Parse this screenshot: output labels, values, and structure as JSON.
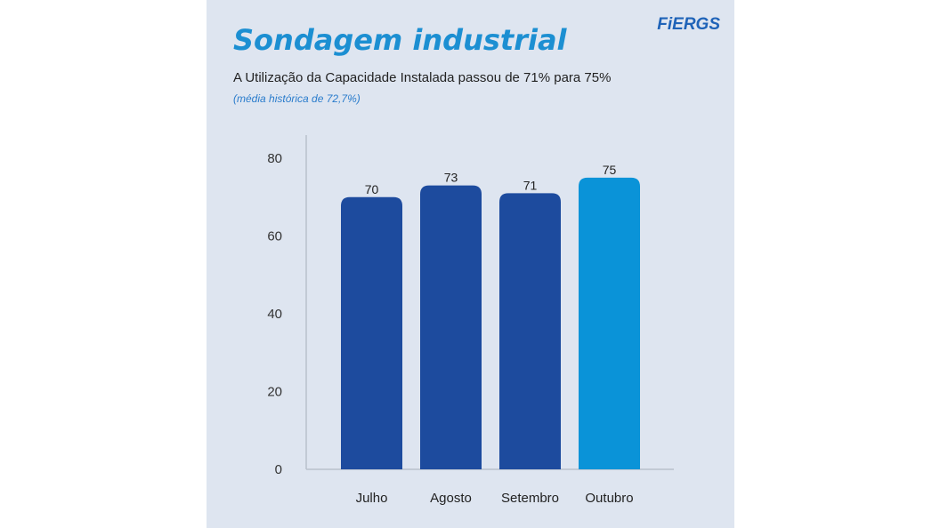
{
  "header": {
    "title": "Sondagem industrial",
    "logo": "FiERGS",
    "subtitle": "A Utilização da Capacidade Instalada passou de 71% para 75%",
    "note": "(média histórica de 72,7%)"
  },
  "chart_data": {
    "type": "bar",
    "title": "Sondagem industrial",
    "categories": [
      "Julho",
      "Agosto",
      "Setembro",
      "Outubro"
    ],
    "values": [
      70,
      73,
      71,
      75
    ],
    "yticks": [
      "0",
      "20",
      "40",
      "60",
      "80"
    ],
    "ylim": [
      0,
      80
    ],
    "xlabel": "",
    "ylabel": "",
    "grid": false,
    "colors": [
      "#1d4b9e",
      "#1d4b9e",
      "#1d4b9e",
      "#0a93d8"
    ]
  }
}
